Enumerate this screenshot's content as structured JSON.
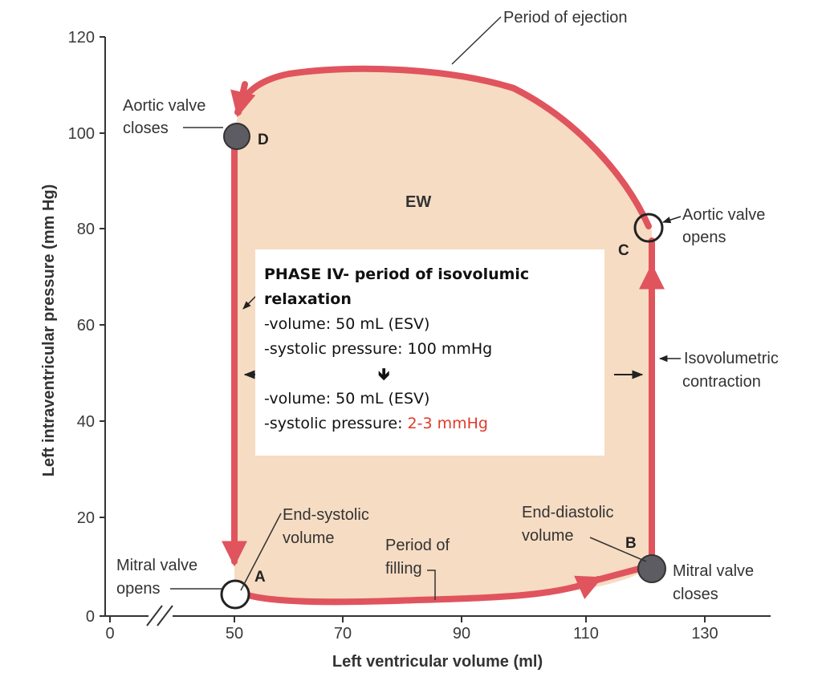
{
  "axes": {
    "x_title": "Left ventricular volume (ml)",
    "y_title": "Left intraventricular pressure (mm Hg)",
    "x_ticks": [
      "0",
      "50",
      "70",
      "90",
      "110",
      "130"
    ],
    "y_ticks": [
      "0",
      "20",
      "40",
      "60",
      "80",
      "100",
      "120"
    ]
  },
  "loop": {
    "area_label": "EW",
    "points": [
      {
        "id": "A",
        "volume": 51,
        "pressure": 4,
        "filled": false
      },
      {
        "id": "B",
        "volume": 120,
        "pressure": 10,
        "filled": true
      },
      {
        "id": "C",
        "volume": 121,
        "pressure": 80,
        "filled": false
      },
      {
        "id": "D",
        "volume": 51,
        "pressure": 99,
        "filled": true
      }
    ],
    "fill_color": "#f6dcc3",
    "line_color": "#e0545e",
    "marker_fill_color": "#5c5c62"
  },
  "annotations": {
    "period_of_ejection": "Period of ejection",
    "aortic_valve_closes": [
      "Aortic valve",
      "closes"
    ],
    "aortic_valve_opens": [
      "Aortic valve",
      "opens"
    ],
    "isovolumetric_contraction": [
      "Isovolumetric",
      "contraction"
    ],
    "end_systolic_volume": [
      "End-systolic",
      "volume"
    ],
    "end_diastolic_volume": [
      "End-diastolic",
      "volume"
    ],
    "period_of_filling": [
      "Period of",
      "filling"
    ],
    "mitral_valve_opens": [
      "Mitral valve",
      "opens"
    ],
    "mitral_valve_closes": [
      "Mitral valve",
      "closes"
    ]
  },
  "info_box": {
    "heading_line1": "PHASE IV- period of isovolumic",
    "heading_line2": "relaxation",
    "before_volume": "-volume: 50 mL (ESV)",
    "before_pressure": "-systolic pressure: 100 mmHg",
    "after_volume": "-volume: 50 mL (ESV)",
    "after_pressure_label": "-systolic pressure: ",
    "after_pressure_value": "2-3 mmHg",
    "highlight_color": "#e03a2c"
  }
}
